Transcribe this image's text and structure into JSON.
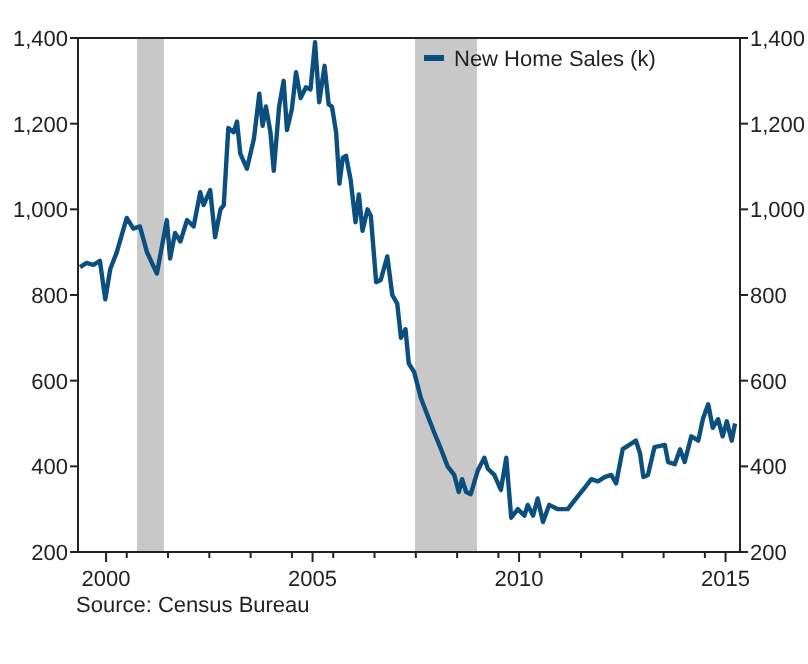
{
  "chart_data": {
    "type": "line",
    "annotations": [
      "Source:  Census Bureau"
    ],
    "xlim": [
      1999.82,
      2015.85
    ],
    "xticks": [
      {
        "value": 2000.5,
        "label": "2000"
      },
      {
        "value": 2005.5,
        "label": "2005"
      },
      {
        "value": 2010.5,
        "label": "2010"
      },
      {
        "value": 2015.5,
        "label": "2015"
      },
      {
        "value": 2001,
        "label": null
      },
      {
        "value": 2002,
        "label": null
      },
      {
        "value": 2003,
        "label": null
      },
      {
        "value": 2004,
        "label": null
      },
      {
        "value": 2005,
        "label": null
      },
      {
        "value": 2006,
        "label": null
      },
      {
        "value": 2007,
        "label": null
      },
      {
        "value": 2008,
        "label": null
      },
      {
        "value": 2009,
        "label": null
      },
      {
        "value": 2010,
        "label": null
      },
      {
        "value": 2011,
        "label": null
      },
      {
        "value": 2012,
        "label": null
      },
      {
        "value": 2013,
        "label": null
      },
      {
        "value": 2014,
        "label": null
      },
      {
        "value": 2015,
        "label": null
      }
    ],
    "ylim": [
      200,
      1400
    ],
    "yticks": [
      {
        "value": 200,
        "label": "200"
      },
      {
        "value": 400,
        "label": "400"
      },
      {
        "value": 600,
        "label": "600"
      },
      {
        "value": 800,
        "label": "800"
      },
      {
        "value": 1000,
        "label": "1,000"
      },
      {
        "value": 1200,
        "label": "1,200"
      },
      {
        "value": 1400,
        "label": "1,400"
      }
    ],
    "y2lim": [
      200,
      1400
    ],
    "y2ticks": [
      {
        "value": 200,
        "label": "200"
      },
      {
        "value": 400,
        "label": "400"
      },
      {
        "value": 600,
        "label": "600"
      },
      {
        "value": 800,
        "label": "800"
      },
      {
        "value": 1000,
        "label": "1,000"
      },
      {
        "value": 1200,
        "label": "1,200"
      },
      {
        "value": 1400,
        "label": "1,400"
      }
    ],
    "bands": [
      {
        "axis": "x",
        "from": 2001.25,
        "to": 2001.9,
        "color": "#c8c8c8"
      },
      {
        "axis": "x",
        "from": 2007.98,
        "to": 2009.48,
        "color": "#c8c8c8"
      }
    ],
    "legend": "top right",
    "grid": false,
    "series": [
      {
        "name": "New Home Sales (k)",
        "color": "#0b4f7e",
        "x": [
          1999.87,
          2000.03,
          2000.19,
          2000.35,
          2000.48,
          2000.6,
          2000.76,
          2001.0,
          2001.16,
          2001.32,
          2001.49,
          2001.73,
          2001.97,
          2002.05,
          2002.17,
          2002.3,
          2002.46,
          2002.62,
          2002.78,
          2002.86,
          2003.02,
          2003.14,
          2003.27,
          2003.35,
          2003.46,
          2003.59,
          2003.67,
          2003.75,
          2003.91,
          2004.08,
          2004.21,
          2004.29,
          2004.37,
          2004.48,
          2004.56,
          2004.69,
          2004.8,
          2004.88,
          2005.0,
          2005.1,
          2005.21,
          2005.34,
          2005.45,
          2005.56,
          2005.66,
          2005.79,
          2005.89,
          2005.97,
          2006.07,
          2006.15,
          2006.23,
          2006.31,
          2006.42,
          2006.54,
          2006.62,
          2006.71,
          2006.83,
          2006.91,
          2007.04,
          2007.15,
          2007.31,
          2007.43,
          2007.55,
          2007.64,
          2007.75,
          2007.83,
          2007.96,
          2008.12,
          2008.28,
          2008.44,
          2008.61,
          2008.77,
          2008.93,
          2009.04,
          2009.12,
          2009.22,
          2009.33,
          2009.5,
          2009.66,
          2009.74,
          2009.9,
          2010.06,
          2010.19,
          2010.31,
          2010.47,
          2010.63,
          2010.71,
          2010.84,
          2010.95,
          2011.08,
          2011.23,
          2011.44,
          2011.68,
          2011.92,
          2012.09,
          2012.25,
          2012.41,
          2012.57,
          2012.73,
          2012.85,
          2013.01,
          2013.17,
          2013.33,
          2013.43,
          2013.51,
          2013.62,
          2013.78,
          2014.03,
          2014.11,
          2014.27,
          2014.4,
          2014.51,
          2014.67,
          2014.84,
          2014.95,
          2015.08,
          2015.19,
          2015.32,
          2015.43,
          2015.53,
          2015.65,
          2015.73
        ],
        "values": [
          865,
          875,
          870,
          880,
          790,
          860,
          900,
          980,
          955,
          960,
          900,
          850,
          975,
          885,
          945,
          925,
          975,
          960,
          1040,
          1010,
          1045,
          935,
          1000,
          1010,
          1190,
          1180,
          1205,
          1130,
          1095,
          1165,
          1270,
          1195,
          1240,
          1180,
          1090,
          1240,
          1300,
          1185,
          1235,
          1320,
          1260,
          1285,
          1280,
          1390,
          1250,
          1335,
          1245,
          1240,
          1180,
          1060,
          1120,
          1125,
          1070,
          970,
          1035,
          950,
          1000,
          985,
          830,
          835,
          890,
          800,
          780,
          700,
          720,
          640,
          620,
          560,
          520,
          480,
          440,
          400,
          380,
          340,
          370,
          340,
          335,
          390,
          420,
          395,
          380,
          345,
          420,
          280,
          300,
          285,
          310,
          285,
          325,
          270,
          310,
          300,
          300,
          330,
          350,
          370,
          365,
          375,
          380,
          360,
          440,
          450,
          460,
          430,
          375,
          380,
          445,
          450,
          410,
          405,
          440,
          410,
          470,
          460,
          510,
          545,
          490,
          510,
          470,
          505,
          460,
          500
        ]
      }
    ]
  }
}
